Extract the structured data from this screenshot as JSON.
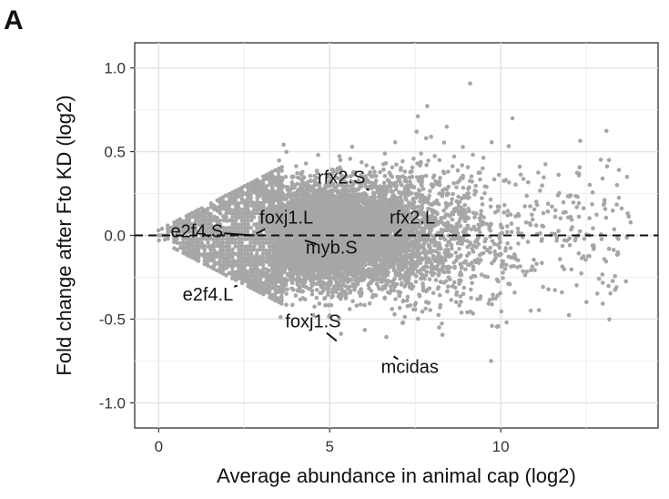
{
  "figure": {
    "panel_label": "A"
  },
  "chart_data": {
    "type": "scatter",
    "xlabel": "Average abundance in animal cap (log2)",
    "ylabel": "Fold change after Fto KD (log2)",
    "xlim": [
      -0.7,
      14.6
    ],
    "ylim": [
      -1.15,
      1.15
    ],
    "x_ticks": [
      0,
      5,
      10
    ],
    "x_tick_labels": [
      "0",
      "5",
      "10"
    ],
    "y_ticks": [
      -1.0,
      -0.5,
      0.0,
      0.5,
      1.0
    ],
    "y_tick_labels": [
      "-1.0",
      "-0.5",
      "0.0",
      "0.5",
      "1.0"
    ],
    "grid": true,
    "reference_line": {
      "y": 0,
      "style": "dashed"
    },
    "point_color": "#a6a6a6",
    "label_color": "#111111",
    "highlighted_genes": [
      {
        "label": "rfx2.S",
        "x": 6.15,
        "y": 0.27,
        "text_x": 4.65,
        "text_y": 0.31
      },
      {
        "label": "foxj1.L",
        "x": 2.85,
        "y": 0.01,
        "text_x": 2.95,
        "text_y": 0.07
      },
      {
        "label": "rfx2.L",
        "x": 6.9,
        "y": 0.0,
        "text_x": 6.75,
        "text_y": 0.07
      },
      {
        "label": "e2f4.S",
        "x": 2.8,
        "y": 0.0,
        "text_x": 0.35,
        "text_y": -0.01
      },
      {
        "label": "myb.S",
        "x": 4.6,
        "y": -0.05,
        "text_x": 4.3,
        "text_y": -0.11
      },
      {
        "label": "e2f4.L",
        "x": 2.3,
        "y": -0.3,
        "text_x": 0.7,
        "text_y": -0.39
      },
      {
        "label": "foxj1.S",
        "x": 5.2,
        "y": -0.63,
        "text_x": 3.7,
        "text_y": -0.55
      },
      {
        "label": "mcidas",
        "x": 7.0,
        "y": -0.74,
        "text_x": 6.5,
        "text_y": -0.82
      }
    ]
  }
}
